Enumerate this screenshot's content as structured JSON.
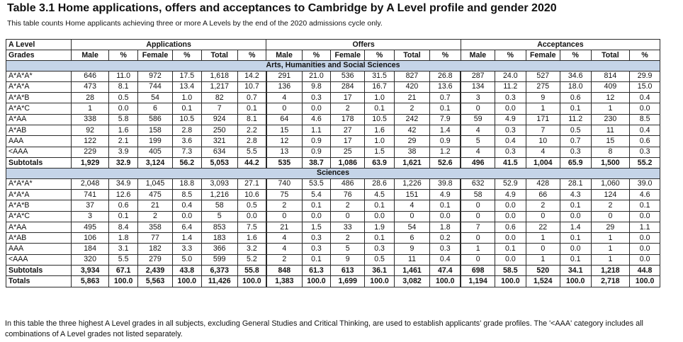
{
  "title": "Table 3.1 Home applications, offers and acceptances to Cambridge by A Level profile and gender 2020",
  "subtitle": "This table counts Home applicants achieving three or more A Levels by the end of the 2020 admissions cycle only.",
  "header": {
    "grade_label_1": "A Level",
    "grade_label_2": "Grades",
    "groups": [
      "Applications",
      "Offers",
      "Acceptances"
    ],
    "cols": [
      "Male",
      "%",
      "Female",
      "%",
      "Total",
      "%"
    ]
  },
  "sections": [
    {
      "title": "Arts, Humanities and Social Sciences",
      "rows": [
        [
          "A*A*A*",
          "646",
          "11.0",
          "972",
          "17.5",
          "1,618",
          "14.2",
          "291",
          "21.0",
          "536",
          "31.5",
          "827",
          "26.8",
          "287",
          "24.0",
          "527",
          "34.6",
          "814",
          "29.9"
        ],
        [
          "A*A*A",
          "473",
          "8.1",
          "744",
          "13.4",
          "1,217",
          "10.7",
          "136",
          "9.8",
          "284",
          "16.7",
          "420",
          "13.6",
          "134",
          "11.2",
          "275",
          "18.0",
          "409",
          "15.0"
        ],
        [
          "A*A*B",
          "28",
          "0.5",
          "54",
          "1.0",
          "82",
          "0.7",
          "4",
          "0.3",
          "17",
          "1.0",
          "21",
          "0.7",
          "3",
          "0.3",
          "9",
          "0.6",
          "12",
          "0.4"
        ],
        [
          "A*A*C",
          "1",
          "0.0",
          "6",
          "0.1",
          "7",
          "0.1",
          "0",
          "0.0",
          "2",
          "0.1",
          "2",
          "0.1",
          "0",
          "0.0",
          "1",
          "0.1",
          "1",
          "0.0"
        ],
        [
          "A*AA",
          "338",
          "5.8",
          "586",
          "10.5",
          "924",
          "8.1",
          "64",
          "4.6",
          "178",
          "10.5",
          "242",
          "7.9",
          "59",
          "4.9",
          "171",
          "11.2",
          "230",
          "8.5"
        ],
        [
          "A*AB",
          "92",
          "1.6",
          "158",
          "2.8",
          "250",
          "2.2",
          "15",
          "1.1",
          "27",
          "1.6",
          "42",
          "1.4",
          "4",
          "0.3",
          "7",
          "0.5",
          "11",
          "0.4"
        ],
        [
          "AAA",
          "122",
          "2.1",
          "199",
          "3.6",
          "321",
          "2.8",
          "12",
          "0.9",
          "17",
          "1.0",
          "29",
          "0.9",
          "5",
          "0.4",
          "10",
          "0.7",
          "15",
          "0.6"
        ],
        [
          "<AAA",
          "229",
          "3.9",
          "405",
          "7.3",
          "634",
          "5.5",
          "13",
          "0.9",
          "25",
          "1.5",
          "38",
          "1.2",
          "4",
          "0.3",
          "4",
          "0.3",
          "8",
          "0.3"
        ]
      ],
      "subtotal": [
        "Subtotals",
        "1,929",
        "32.9",
        "3,124",
        "56.2",
        "5,053",
        "44.2",
        "535",
        "38.7",
        "1,086",
        "63.9",
        "1,621",
        "52.6",
        "496",
        "41.5",
        "1,004",
        "65.9",
        "1,500",
        "55.2"
      ]
    },
    {
      "title": "Sciences",
      "rows": [
        [
          "A*A*A*",
          "2,048",
          "34.9",
          "1,045",
          "18.8",
          "3,093",
          "27.1",
          "740",
          "53.5",
          "486",
          "28.6",
          "1,226",
          "39.8",
          "632",
          "52.9",
          "428",
          "28.1",
          "1,060",
          "39.0"
        ],
        [
          "A*A*A",
          "741",
          "12.6",
          "475",
          "8.5",
          "1,216",
          "10.6",
          "75",
          "5.4",
          "76",
          "4.5",
          "151",
          "4.9",
          "58",
          "4.9",
          "66",
          "4.3",
          "124",
          "4.6"
        ],
        [
          "A*A*B",
          "37",
          "0.6",
          "21",
          "0.4",
          "58",
          "0.5",
          "2",
          "0.1",
          "2",
          "0.1",
          "4",
          "0.1",
          "0",
          "0.0",
          "2",
          "0.1",
          "2",
          "0.1"
        ],
        [
          "A*A*C",
          "3",
          "0.1",
          "2",
          "0.0",
          "5",
          "0.0",
          "0",
          "0.0",
          "0",
          "0.0",
          "0",
          "0.0",
          "0",
          "0.0",
          "0",
          "0.0",
          "0",
          "0.0"
        ],
        [
          "A*AA",
          "495",
          "8.4",
          "358",
          "6.4",
          "853",
          "7.5",
          "21",
          "1.5",
          "33",
          "1.9",
          "54",
          "1.8",
          "7",
          "0.6",
          "22",
          "1.4",
          "29",
          "1.1"
        ],
        [
          "A*AB",
          "106",
          "1.8",
          "77",
          "1.4",
          "183",
          "1.6",
          "4",
          "0.3",
          "2",
          "0.1",
          "6",
          "0.2",
          "0",
          "0.0",
          "1",
          "0.1",
          "1",
          "0.0"
        ],
        [
          "AAA",
          "184",
          "3.1",
          "182",
          "3.3",
          "366",
          "3.2",
          "4",
          "0.3",
          "5",
          "0.3",
          "9",
          "0.3",
          "1",
          "0.1",
          "0",
          "0.0",
          "1",
          "0.0"
        ],
        [
          "<AAA",
          "320",
          "5.5",
          "279",
          "5.0",
          "599",
          "5.2",
          "2",
          "0.1",
          "9",
          "0.5",
          "11",
          "0.4",
          "0",
          "0.0",
          "1",
          "0.1",
          "1",
          "0.0"
        ]
      ],
      "subtotal": [
        "Subtotals",
        "3,934",
        "67.1",
        "2,439",
        "43.8",
        "6,373",
        "55.8",
        "848",
        "61.3",
        "613",
        "36.1",
        "1,461",
        "47.4",
        "698",
        "58.5",
        "520",
        "34.1",
        "1,218",
        "44.8"
      ]
    }
  ],
  "totals": [
    "Totals",
    "5,863",
    "100.0",
    "5,563",
    "100.0",
    "11,426",
    "100.0",
    "1,383",
    "100.0",
    "1,699",
    "100.0",
    "3,082",
    "100.0",
    "1,194",
    "100.0",
    "1,524",
    "100.0",
    "2,718",
    "100.0"
  ],
  "footnote": "In this table the three highest A Level grades in all subjects, excluding General Studies and Critical Thinking, are used to establish applicants' grade profiles. The '<AAA' category includes all combinations of A Level grades not listed separately."
}
